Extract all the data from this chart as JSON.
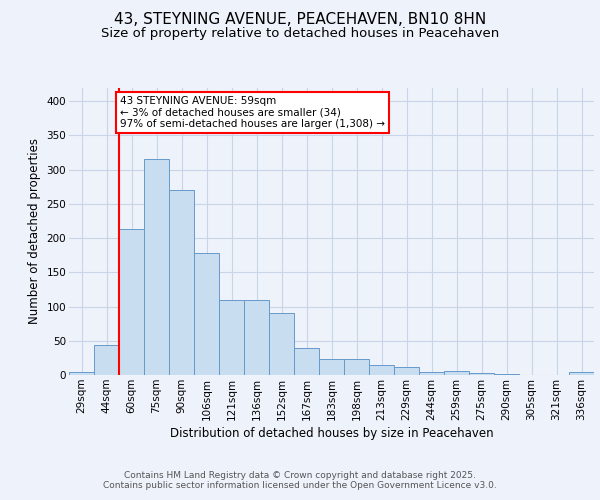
{
  "title1": "43, STEYNING AVENUE, PEACEHAVEN, BN10 8HN",
  "title2": "Size of property relative to detached houses in Peacehaven",
  "xlabel": "Distribution of detached houses by size in Peacehaven",
  "ylabel": "Number of detached properties",
  "bar_labels": [
    "29sqm",
    "44sqm",
    "60sqm",
    "75sqm",
    "90sqm",
    "106sqm",
    "121sqm",
    "136sqm",
    "152sqm",
    "167sqm",
    "183sqm",
    "198sqm",
    "213sqm",
    "229sqm",
    "244sqm",
    "259sqm",
    "275sqm",
    "290sqm",
    "305sqm",
    "321sqm",
    "336sqm"
  ],
  "bar_values": [
    5,
    44,
    213,
    315,
    270,
    178,
    109,
    109,
    90,
    39,
    23,
    24,
    15,
    11,
    4,
    6,
    3,
    2,
    0,
    0,
    4
  ],
  "bar_color": "#c9ddf0",
  "bar_edge_color": "#6699cc",
  "annotation_text": "43 STEYNING AVENUE: 59sqm\n← 3% of detached houses are smaller (34)\n97% of semi-detached houses are larger (1,308) →",
  "annotation_box_color": "white",
  "annotation_box_edge": "red",
  "red_line_index": 2,
  "ylim": [
    0,
    420
  ],
  "yticks": [
    0,
    50,
    100,
    150,
    200,
    250,
    300,
    350,
    400
  ],
  "footer_text": "Contains HM Land Registry data © Crown copyright and database right 2025.\nContains public sector information licensed under the Open Government Licence v3.0.",
  "background_color": "#eef2fb",
  "grid_color": "#c8d4e8",
  "title1_fontsize": 11,
  "title2_fontsize": 9.5,
  "xlabel_fontsize": 8.5,
  "ylabel_fontsize": 8.5,
  "footer_fontsize": 6.5,
  "tick_fontsize": 7.5,
  "annot_fontsize": 7.5
}
